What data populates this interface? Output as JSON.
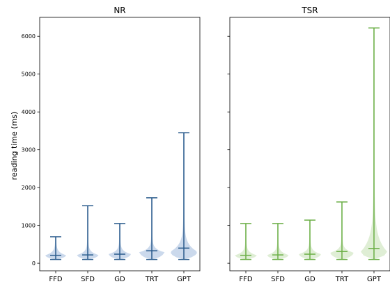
{
  "chart_data": [
    {
      "type": "violin",
      "title": "NR",
      "ylabel": "reading time (ms)",
      "ylim": [
        -200,
        6500
      ],
      "yticks": [
        0,
        1000,
        2000,
        3000,
        4000,
        5000,
        6000
      ],
      "categories": [
        "FFD",
        "SFD",
        "GD",
        "TRT",
        "GPT"
      ],
      "color": "#2a5b8c",
      "fill_color": "#c5d5ea",
      "series": [
        {
          "category": "FFD",
          "min": 100,
          "max": 700,
          "median": 210,
          "max_density_halfwidth": 0.32,
          "peak_at": 210
        },
        {
          "category": "SFD",
          "min": 100,
          "max": 1520,
          "median": 220,
          "max_density_halfwidth": 0.33,
          "peak_at": 215
        },
        {
          "category": "GD",
          "min": 100,
          "max": 1050,
          "median": 240,
          "max_density_halfwidth": 0.34,
          "peak_at": 240
        },
        {
          "category": "TRT",
          "min": 100,
          "max": 1730,
          "median": 330,
          "max_density_halfwidth": 0.38,
          "peak_at": 290
        },
        {
          "category": "GPT",
          "min": 100,
          "max": 3450,
          "median": 400,
          "max_density_halfwidth": 0.42,
          "peak_at": 300
        }
      ]
    },
    {
      "type": "violin",
      "title": "TSR",
      "ylabel": "",
      "ylim": [
        -200,
        6500
      ],
      "yticks": [
        0,
        1000,
        2000,
        3000,
        4000,
        5000,
        6000
      ],
      "categories": [
        "FFD",
        "SFD",
        "GD",
        "TRT",
        "GPT"
      ],
      "color": "#6aae45",
      "fill_color": "#dcecd0",
      "series": [
        {
          "category": "FFD",
          "min": 100,
          "max": 1050,
          "median": 210,
          "max_density_halfwidth": 0.33,
          "peak_at": 210
        },
        {
          "category": "SFD",
          "min": 100,
          "max": 1050,
          "median": 220,
          "max_density_halfwidth": 0.33,
          "peak_at": 215
        },
        {
          "category": "GD",
          "min": 100,
          "max": 1140,
          "median": 240,
          "max_density_halfwidth": 0.34,
          "peak_at": 240
        },
        {
          "category": "TRT",
          "min": 100,
          "max": 1620,
          "median": 310,
          "max_density_halfwidth": 0.36,
          "peak_at": 280
        },
        {
          "category": "GPT",
          "min": 100,
          "max": 6220,
          "median": 390,
          "max_density_halfwidth": 0.4,
          "peak_at": 300
        }
      ]
    }
  ]
}
